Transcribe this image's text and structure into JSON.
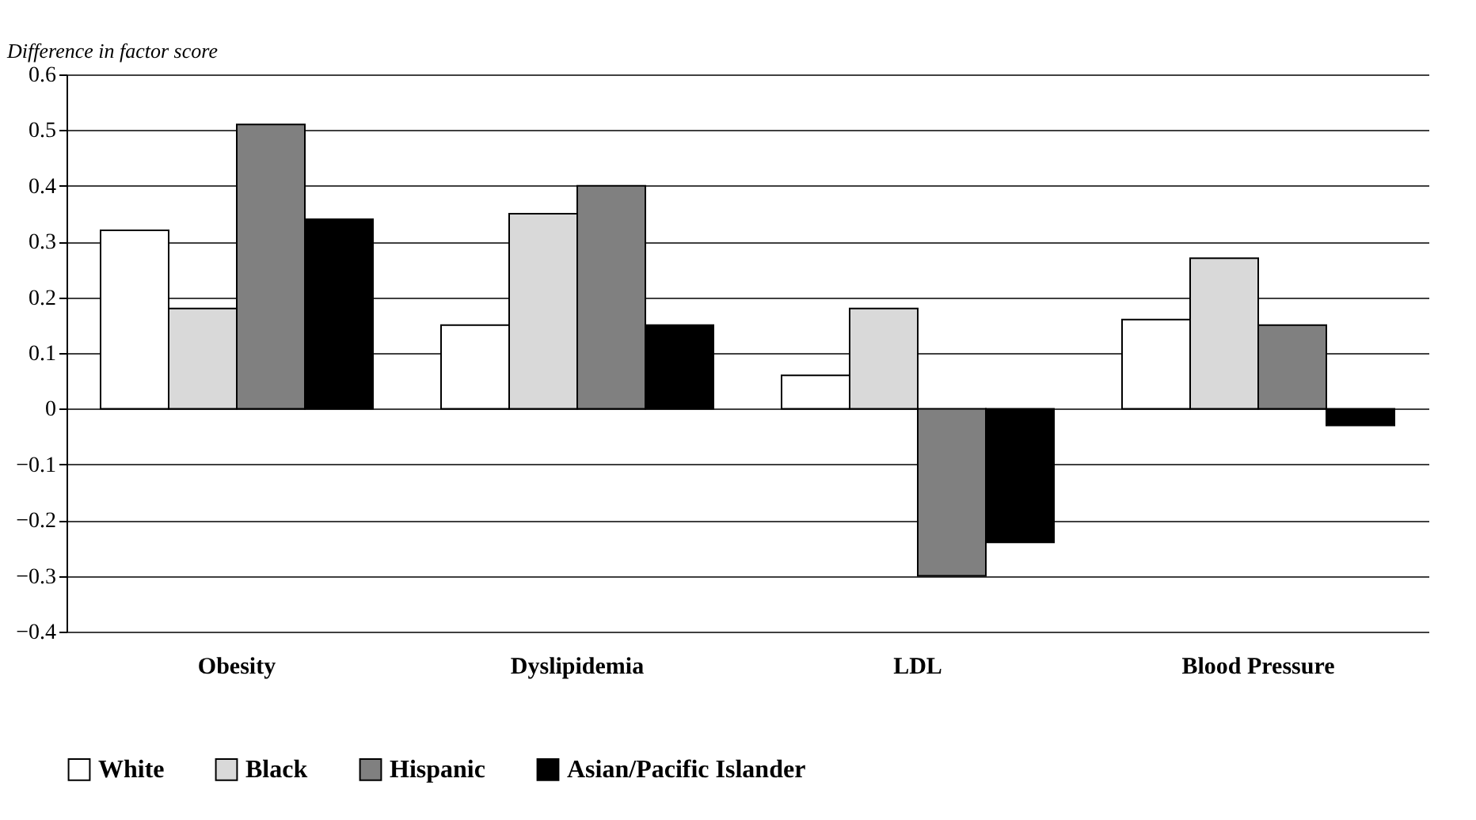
{
  "chart_data": {
    "type": "bar",
    "ylabel": "Difference in factor score",
    "categories": [
      "Obesity",
      "Dyslipidemia",
      "LDL",
      "Blood Pressure"
    ],
    "series": [
      {
        "name": "White",
        "color": "#ffffff",
        "values": [
          0.32,
          0.15,
          0.06,
          0.16
        ]
      },
      {
        "name": "Black",
        "color": "#d9d9d9",
        "values": [
          0.18,
          0.35,
          0.18,
          0.27
        ]
      },
      {
        "name": "Hispanic",
        "color": "#808080",
        "values": [
          0.51,
          0.4,
          -0.3,
          0.15
        ]
      },
      {
        "name": "Asian/Pacific Islander",
        "color": "#000000",
        "values": [
          0.34,
          0.15,
          -0.24,
          -0.03
        ]
      }
    ],
    "ylim": [
      -0.4,
      0.6
    ],
    "yticks": [
      -0.4,
      -0.3,
      -0.2,
      -0.1,
      0,
      0.1,
      0.2,
      0.3,
      0.4,
      0.5,
      0.6
    ],
    "grid": "y",
    "legend": "bottom"
  }
}
